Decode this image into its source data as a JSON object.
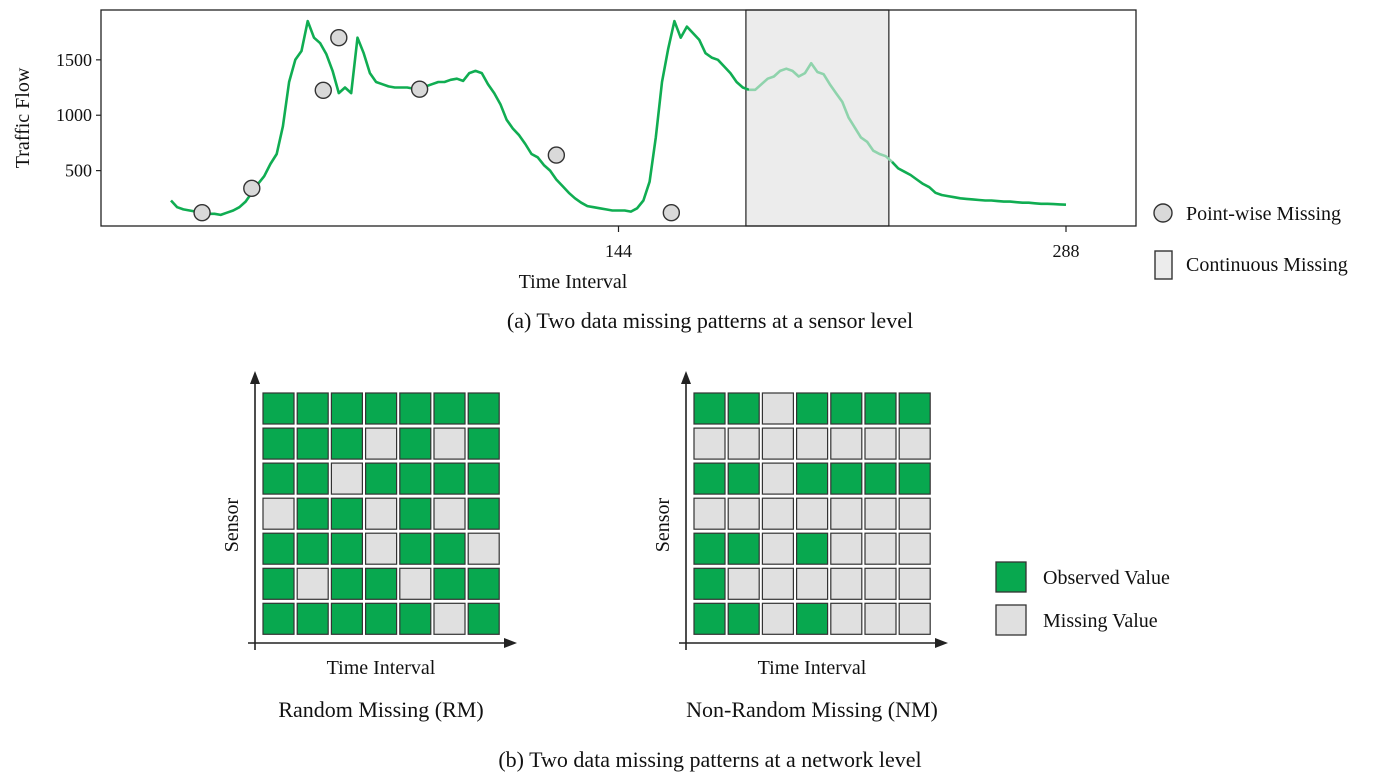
{
  "colors": {
    "observed": "#08a84f",
    "missing": "#e0e0e0",
    "line": "#10ad52",
    "line_faded": "#8fd3ac",
    "point_fill": "#d9d9d9",
    "shade": "#ececec"
  },
  "panel_a": {
    "caption": "(a) Two data missing patterns at a sensor level",
    "legend": {
      "point": "Point-wise Missing",
      "continuous": "Continuous Missing"
    },
    "chart_data": {
      "type": "line",
      "xlabel": "Time Interval",
      "ylabel": "Traffic Flow",
      "xlim": [
        0,
        305
      ],
      "ylim": [
        0,
        1950
      ],
      "xticks": [
        144,
        288
      ],
      "yticks": [
        500,
        1000,
        1500
      ],
      "series": [
        {
          "x": [
            0,
            2,
            4,
            6,
            8,
            10,
            12,
            14,
            16,
            18,
            20,
            22,
            24,
            26,
            28,
            30,
            32,
            34,
            36,
            38,
            40,
            42,
            44,
            46,
            48,
            50,
            52,
            54,
            56,
            58,
            60,
            62,
            64,
            66,
            68,
            70,
            72,
            74,
            76,
            78,
            80,
            82,
            84,
            86,
            88,
            90,
            92,
            94,
            96,
            98,
            100,
            102,
            104,
            106,
            108,
            110,
            112,
            114,
            116,
            118,
            120,
            122,
            124,
            126,
            128,
            130,
            132,
            134,
            136,
            138,
            140,
            142,
            144,
            146,
            148,
            150,
            152,
            154,
            156,
            158,
            160,
            162,
            164,
            166,
            168,
            170,
            172,
            174,
            176,
            178,
            180,
            182,
            184,
            186,
            188,
            190,
            192,
            194,
            196,
            198,
            200,
            202,
            204,
            206,
            208,
            210,
            212,
            214,
            216,
            218,
            220,
            222,
            224,
            226,
            228,
            230,
            232,
            234,
            236,
            238,
            240,
            242,
            244,
            246,
            248,
            250,
            252,
            254,
            256,
            258,
            260,
            262,
            264,
            266,
            268,
            270,
            272,
            274,
            276,
            278,
            280,
            282,
            284,
            286,
            288
          ],
          "y": [
            230,
            170,
            150,
            140,
            130,
            120,
            110,
            110,
            100,
            120,
            140,
            170,
            220,
            300,
            380,
            450,
            560,
            650,
            900,
            1300,
            1500,
            1580,
            1850,
            1700,
            1650,
            1550,
            1400,
            1200,
            1250,
            1200,
            1700,
            1560,
            1380,
            1300,
            1280,
            1260,
            1250,
            1250,
            1250,
            1240,
            1240,
            1260,
            1280,
            1300,
            1300,
            1320,
            1330,
            1310,
            1380,
            1400,
            1380,
            1280,
            1200,
            1100,
            960,
            880,
            820,
            740,
            650,
            620,
            550,
            500,
            420,
            360,
            300,
            250,
            210,
            180,
            170,
            160,
            150,
            140,
            140,
            140,
            130,
            160,
            230,
            400,
            800,
            1300,
            1600,
            1850,
            1700,
            1800,
            1740,
            1680,
            1560,
            1520,
            1500,
            1440,
            1380,
            1300,
            1250,
            1230,
            1230,
            1280,
            1330,
            1350,
            1400,
            1420,
            1400,
            1350,
            1380,
            1470,
            1390,
            1370,
            1280,
            1200,
            1120,
            980,
            890,
            800,
            760,
            680,
            650,
            630,
            580,
            520,
            490,
            460,
            420,
            380,
            350,
            300,
            280,
            270,
            260,
            250,
            245,
            240,
            235,
            230,
            230,
            225,
            220,
            220,
            215,
            210,
            210,
            205,
            200,
            200,
            198,
            195,
            192
          ]
        }
      ],
      "highlight_range": [
        185,
        231
      ],
      "missing_points": [
        {
          "x": 10,
          "y": 120
        },
        {
          "x": 26,
          "y": 340
        },
        {
          "x": 49,
          "y": 1225
        },
        {
          "x": 54,
          "y": 1700
        },
        {
          "x": 80,
          "y": 1235
        },
        {
          "x": 124,
          "y": 640
        },
        {
          "x": 161,
          "y": 120
        }
      ]
    }
  },
  "panel_b": {
    "caption": "(b) Two data missing patterns at a network level",
    "grids": [
      {
        "title": "Random Missing (RM)",
        "xlabel": "Time Interval",
        "ylabel": "Sensor",
        "rows": [
          [
            1,
            1,
            1,
            1,
            1,
            1,
            1
          ],
          [
            1,
            1,
            1,
            0,
            1,
            0,
            1
          ],
          [
            1,
            1,
            0,
            1,
            1,
            1,
            1
          ],
          [
            0,
            1,
            1,
            0,
            1,
            0,
            1
          ],
          [
            1,
            1,
            1,
            0,
            1,
            1,
            0
          ],
          [
            1,
            0,
            1,
            1,
            0,
            1,
            1
          ],
          [
            1,
            1,
            1,
            1,
            1,
            0,
            1
          ]
        ]
      },
      {
        "title": "Non-Random Missing (NM)",
        "xlabel": "Time Interval",
        "ylabel": "Sensor",
        "rows": [
          [
            1,
            1,
            0,
            1,
            1,
            1,
            1
          ],
          [
            0,
            0,
            0,
            0,
            0,
            0,
            0
          ],
          [
            1,
            1,
            0,
            1,
            1,
            1,
            1
          ],
          [
            0,
            0,
            0,
            0,
            0,
            0,
            0
          ],
          [
            1,
            1,
            0,
            1,
            0,
            0,
            0
          ],
          [
            1,
            0,
            0,
            0,
            0,
            0,
            0
          ],
          [
            1,
            1,
            0,
            1,
            0,
            0,
            0
          ]
        ]
      }
    ],
    "legend": {
      "observed": "Observed Value",
      "missing": "Missing Value"
    }
  }
}
